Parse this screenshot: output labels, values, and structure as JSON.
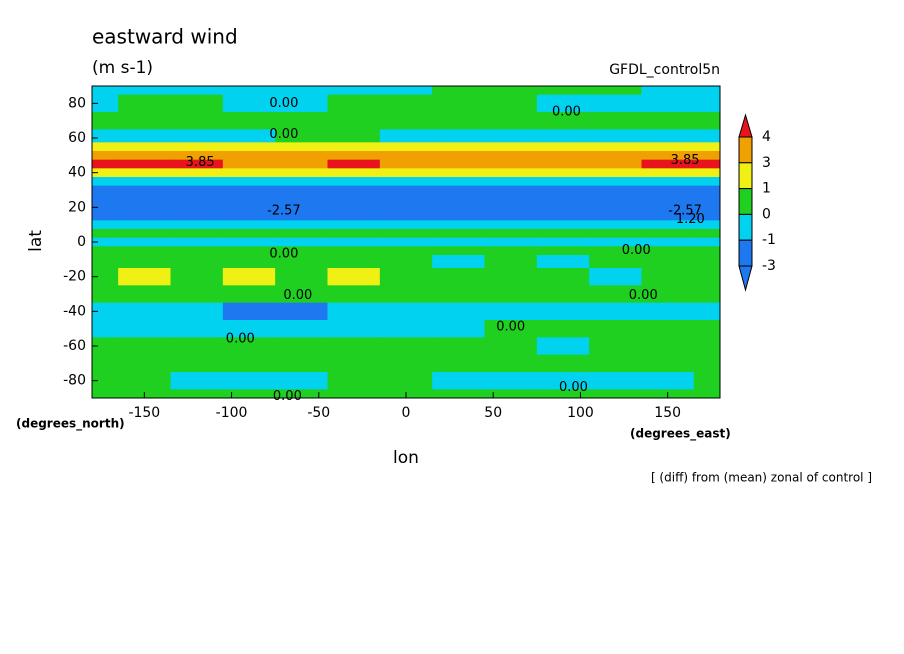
{
  "chart_data": {
    "type": "contour",
    "title": "eastward wind",
    "subtitle": "(m s-1)",
    "source": "GFDL_control5n",
    "xlabel": "lon",
    "ylabel": "lat",
    "xunit": "(degrees_east)",
    "yunit": "(degrees_north)",
    "note": "[ (diff) from (mean) zonal of control ]",
    "xlim": [
      -180,
      180
    ],
    "ylim": [
      -90,
      90
    ],
    "xticks": [
      -150,
      -100,
      -50,
      0,
      50,
      100,
      150
    ],
    "yticks": [
      -80,
      -60,
      -40,
      -20,
      0,
      20,
      40,
      60,
      80
    ],
    "x": [
      -180,
      -150,
      -120,
      -90,
      -60,
      -30,
      0,
      30,
      60,
      90,
      120,
      150,
      180
    ],
    "y": [
      90,
      80,
      70,
      60,
      55,
      50,
      45,
      40,
      35,
      30,
      25,
      20,
      15,
      10,
      5,
      0,
      -5,
      -10,
      -20,
      -30,
      -40,
      -50,
      -60,
      -70,
      -80,
      -90
    ],
    "z": [
      [
        -0.5,
        -0.5,
        -0.5,
        -0.5,
        -0.5,
        -0.5,
        -0.3,
        0.3,
        0.3,
        0.3,
        0.3,
        -0.3,
        -0.5
      ],
      [
        -0.3,
        0.3,
        0.3,
        -0.5,
        -0.5,
        0.3,
        0.3,
        0.3,
        0.3,
        -0.5,
        -0.5,
        -0.5,
        -0.3
      ],
      [
        0.5,
        0.5,
        0.5,
        0.5,
        0.5,
        0.5,
        0.5,
        0.5,
        0.5,
        0.5,
        0.5,
        0.5,
        0.5
      ],
      [
        -0.5,
        -0.5,
        -0.5,
        -0.5,
        0.5,
        0.5,
        -0.5,
        -0.5,
        -0.5,
        -0.5,
        -0.5,
        -0.5,
        -0.5
      ],
      [
        1.5,
        1.5,
        1.5,
        1.5,
        1.5,
        1.5,
        1.5,
        1.5,
        1.5,
        1.5,
        1.5,
        1.5,
        1.5
      ],
      [
        3.3,
        3.3,
        3.3,
        3.3,
        3.3,
        3.3,
        3.3,
        3.3,
        3.3,
        3.3,
        3.3,
        3.3,
        3.3
      ],
      [
        4.2,
        4.2,
        4.2,
        3.5,
        3.5,
        4.2,
        3.5,
        3.5,
        3.5,
        3.5,
        3.5,
        4.2,
        4.2
      ],
      [
        2,
        2,
        2,
        2,
        2,
        2,
        2,
        2,
        2,
        2,
        2,
        2,
        2
      ],
      [
        -0.5,
        -0.5,
        -0.5,
        -0.5,
        -0.5,
        -0.5,
        -0.5,
        -0.5,
        -0.5,
        -0.5,
        -0.5,
        -0.5,
        -0.5
      ],
      [
        -2,
        -2,
        -2,
        -2,
        -2,
        -2,
        -2,
        -2,
        -2,
        -2,
        -2,
        -2,
        -2
      ],
      [
        -2.5,
        -2.5,
        -2.5,
        -2.5,
        -2.5,
        -2.5,
        -2.5,
        -2.5,
        -2.5,
        -2.5,
        -2.5,
        -2.5,
        -2.5
      ],
      [
        -2.5,
        -2.5,
        -2.5,
        -2.5,
        -2.5,
        -2.5,
        -2.5,
        -2.5,
        -2.5,
        -2.5,
        -2.5,
        -2.5,
        -2.5
      ],
      [
        -2,
        -2,
        -2,
        -2,
        -2,
        -2,
        -2,
        -2,
        -2,
        -2,
        -2,
        -2,
        -2
      ],
      [
        -0.5,
        -0.5,
        -0.5,
        -0.5,
        -0.5,
        -0.5,
        -0.5,
        -0.5,
        -0.5,
        -0.5,
        -0.5,
        -0.5,
        -0.5
      ],
      [
        0.5,
        0.5,
        0.5,
        0.5,
        0.5,
        0.5,
        0.5,
        0.5,
        0.5,
        0.5,
        0.5,
        0.5,
        0.5
      ],
      [
        -0.5,
        -0.5,
        -0.5,
        -0.5,
        -0.5,
        -0.5,
        -0.5,
        -0.5,
        -0.5,
        -0.5,
        -0.5,
        -0.5,
        -0.5
      ],
      [
        0.5,
        0.5,
        0.5,
        0.5,
        0.5,
        0.5,
        0.5,
        0.5,
        0.5,
        0.5,
        0.5,
        0.5,
        0.5
      ],
      [
        0.5,
        0.5,
        0.5,
        0.5,
        0.5,
        0.5,
        0.5,
        -0.5,
        0.5,
        -0.5,
        0.5,
        0.5,
        0.5
      ],
      [
        0.5,
        1.5,
        0.5,
        1.5,
        0.5,
        1.5,
        0.5,
        0.5,
        0.5,
        0.5,
        -0.5,
        0.5,
        0.5
      ],
      [
        0.5,
        0.5,
        0.5,
        0.5,
        0.5,
        0.5,
        0.5,
        0.5,
        0.5,
        0.5,
        0.5,
        0.5,
        0.5
      ],
      [
        -0.5,
        -0.5,
        -0.5,
        -1.5,
        -1.5,
        -0.5,
        -0.5,
        -0.5,
        -0.5,
        -0.5,
        -0.5,
        -0.5,
        -0.5
      ],
      [
        -0.5,
        -0.5,
        -0.5,
        -0.5,
        -0.5,
        -0.5,
        -0.5,
        -0.5,
        0.5,
        0.5,
        0.5,
        0.5,
        0.5
      ],
      [
        0.5,
        0.5,
        0.5,
        0.5,
        0.5,
        0.5,
        0.5,
        0.5,
        0.5,
        -0.5,
        0.5,
        0.5,
        0.5
      ],
      [
        0.5,
        0.5,
        0.5,
        0.5,
        0.5,
        0.5,
        0.5,
        0.5,
        0.5,
        0.5,
        0.5,
        0.5,
        0.5
      ],
      [
        0.5,
        0.5,
        -0.5,
        -0.5,
        -0.5,
        0.5,
        0.5,
        -0.5,
        -0.5,
        -0.5,
        -0.5,
        -0.5,
        0.5
      ],
      [
        0.5,
        0.5,
        0.5,
        0.5,
        0.5,
        0.5,
        0.5,
        0.5,
        0.5,
        0.5,
        0.5,
        0.5,
        0.5
      ]
    ],
    "contour_labels": [
      {
        "x": -70,
        "y": 80,
        "label": "0.00"
      },
      {
        "x": 92,
        "y": 75,
        "label": "0.00"
      },
      {
        "x": -70,
        "y": 62,
        "label": "0.00"
      },
      {
        "x": -118,
        "y": 46,
        "label": "3.85"
      },
      {
        "x": 160,
        "y": 47,
        "label": "3.85"
      },
      {
        "x": -70,
        "y": 18,
        "label": "-2.57"
      },
      {
        "x": 160,
        "y": 18,
        "label": "-2.57"
      },
      {
        "x": 163,
        "y": 13,
        "label": "1.20"
      },
      {
        "x": -70,
        "y": -7,
        "label": "0.00"
      },
      {
        "x": 132,
        "y": -5,
        "label": "0.00"
      },
      {
        "x": -62,
        "y": -31,
        "label": "0.00"
      },
      {
        "x": 136,
        "y": -31,
        "label": "0.00"
      },
      {
        "x": 60,
        "y": -49,
        "label": "0.00"
      },
      {
        "x": -95,
        "y": -56,
        "label": "0.00"
      },
      {
        "x": 96,
        "y": -84,
        "label": "0.00"
      },
      {
        "x": -68,
        "y": -89,
        "label": "0.00"
      }
    ],
    "colorbar": {
      "levels": [
        -3,
        -1,
        0,
        1,
        3,
        4
      ],
      "colors": [
        "#1e78f0",
        "#1e78f0",
        "#00d2ef",
        "#20d020",
        "#f0f014",
        "#f0a000",
        "#e8141c"
      ]
    }
  }
}
